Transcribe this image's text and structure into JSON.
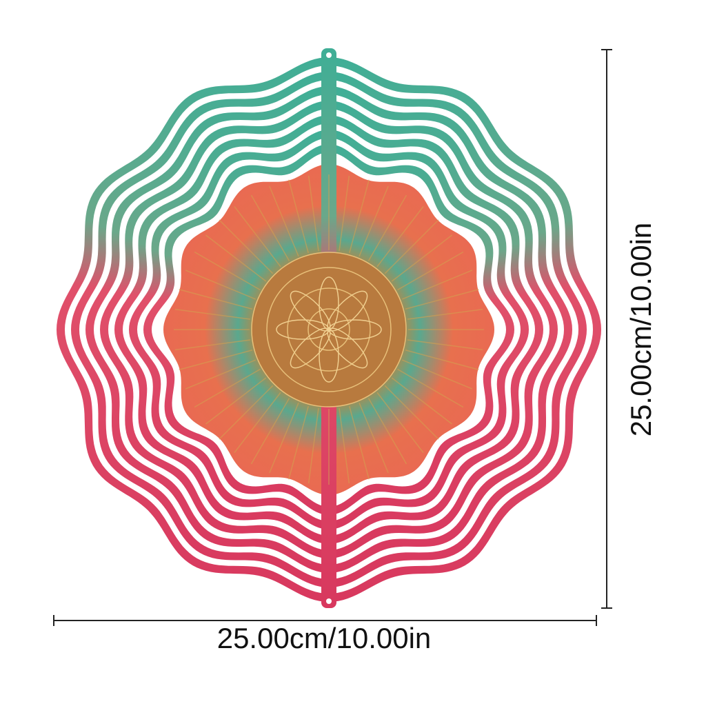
{
  "product": {
    "width_label": "25.00cm/10.00in",
    "height_label": "25.00cm/10.00in",
    "colors": {
      "teal": "#3fae96",
      "coral": "#ea6a4e",
      "red": "#e0325a",
      "gold": "#c8893a"
    },
    "icon": "wavy-wind-spinner-mandala"
  }
}
